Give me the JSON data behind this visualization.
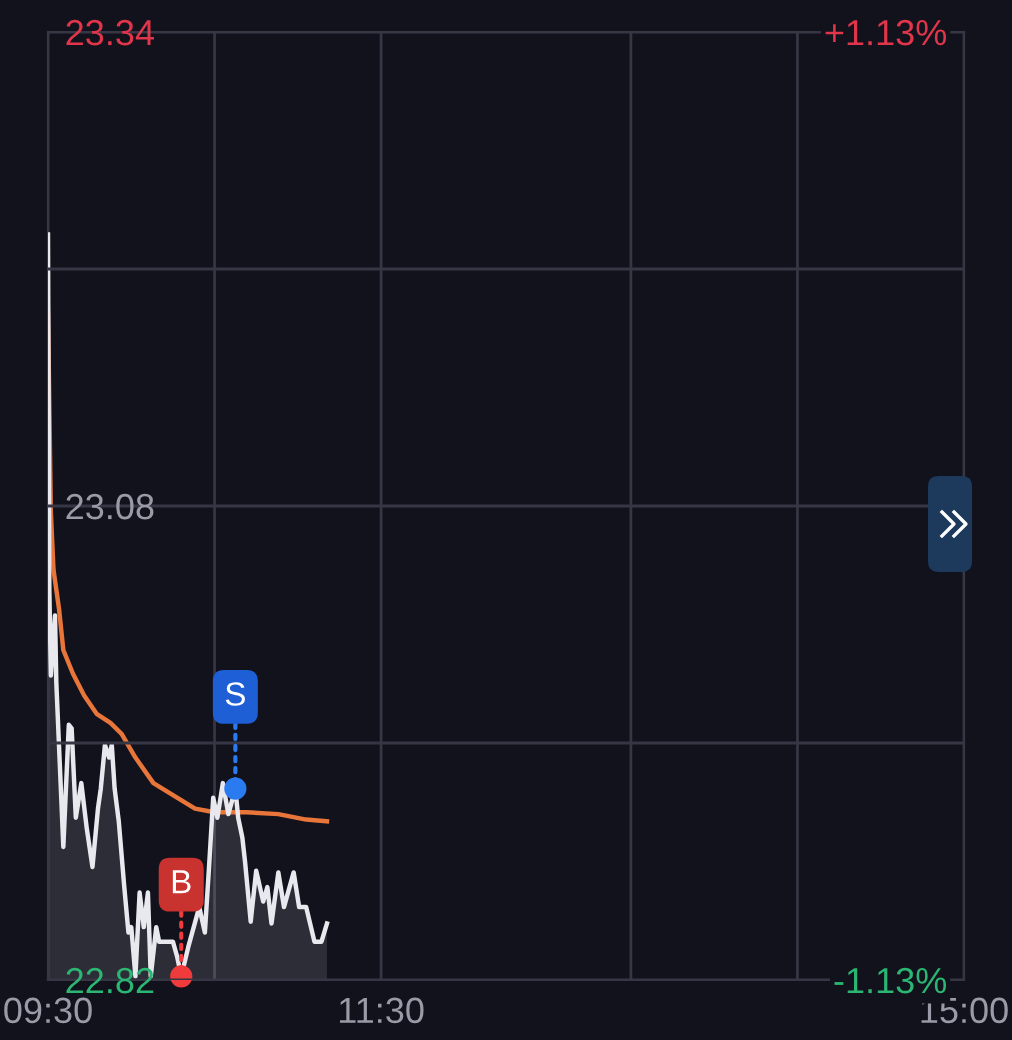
{
  "chart_data": {
    "type": "line",
    "xlim": [
      9.5,
      15
    ],
    "xticks": [
      {
        "value": 9.5,
        "label": "09:30"
      },
      {
        "value": 10.5,
        "label": null
      },
      {
        "value": 11.5,
        "label": "11:30"
      },
      {
        "value": 13,
        "label": null
      },
      {
        "value": 14,
        "label": null
      },
      {
        "value": 15,
        "label": "15:00"
      }
    ],
    "ylim": [
      22.82,
      23.34
    ],
    "yticks": [
      {
        "value": 22.82,
        "label": "22.82"
      },
      {
        "value": 22.95,
        "label": null
      },
      {
        "value": 23.08,
        "label": "23.08"
      },
      {
        "value": 23.21,
        "label": null
      },
      {
        "value": 23.34,
        "label": "23.34"
      }
    ],
    "y2lim": [
      -1.13,
      1.13
    ],
    "y2ticks": [
      {
        "value": -1.13,
        "label": "-1.13%"
      },
      {
        "value": 1.13,
        "label": "+1.13%"
      }
    ],
    "grid": true,
    "series": [
      {
        "type": "area",
        "color": "#e8e8ee",
        "x": [
          9.5,
          9.508,
          9.517,
          9.542,
          9.55,
          9.592,
          9.625,
          9.642,
          9.667,
          9.7,
          9.733,
          9.767,
          9.8,
          9.817,
          9.842,
          9.867,
          9.883,
          9.9,
          9.925,
          9.958,
          9.983,
          10.0,
          10.025,
          10.05,
          10.075,
          10.1,
          10.117,
          10.15,
          10.167,
          10.25,
          10.275,
          10.3,
          10.342,
          10.408,
          10.442,
          10.467,
          10.492,
          10.517,
          10.55,
          10.583,
          10.625,
          10.642,
          10.667,
          10.683,
          10.717,
          10.75,
          10.792,
          10.817,
          10.842,
          10.883,
          10.917,
          10.975,
          11.008,
          11.05,
          11.1,
          11.142,
          11.175
        ],
        "values": [
          23.229,
          23.034,
          22.987,
          23.02,
          22.983,
          22.893,
          22.96,
          22.958,
          22.909,
          22.928,
          22.903,
          22.882,
          22.914,
          22.925,
          22.949,
          22.942,
          22.949,
          22.925,
          22.907,
          22.871,
          22.846,
          22.849,
          22.822,
          22.868,
          22.849,
          22.868,
          22.822,
          22.849,
          22.841,
          22.841,
          22.833,
          22.822,
          22.838,
          22.86,
          22.846,
          22.882,
          22.92,
          22.909,
          22.928,
          22.911,
          22.925,
          22.909,
          22.898,
          22.885,
          22.852,
          22.88,
          22.863,
          22.871,
          22.851,
          22.879,
          22.86,
          22.879,
          22.86,
          22.86,
          22.841,
          22.841,
          22.851
        ]
      },
      {
        "type": "line",
        "color": "#e8763a",
        "x": [
          9.5,
          9.517,
          9.533,
          9.55,
          9.567,
          9.592,
          9.65,
          9.717,
          9.792,
          9.875,
          9.942,
          10.025,
          10.133,
          10.275,
          10.383,
          10.5,
          10.692,
          10.883,
          11.05,
          11.175
        ],
        "values": [
          23.186,
          23.077,
          23.045,
          23.034,
          23.023,
          23.001,
          22.988,
          22.976,
          22.966,
          22.961,
          22.955,
          22.942,
          22.928,
          22.92,
          22.914,
          22.912,
          22.912,
          22.911,
          22.908,
          22.907
        ]
      }
    ],
    "annotations": [
      {
        "text": "B",
        "x": 10.3,
        "y": 22.822
      },
      {
        "text": "S",
        "x": 10.625,
        "y": 22.925
      }
    ]
  }
}
